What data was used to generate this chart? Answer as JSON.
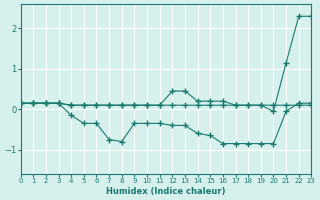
{
  "xlabel": "Humidex (Indice chaleur)",
  "ylabel": "",
  "bg_color": "#d6f0ee",
  "line_color": "#1a7a6e",
  "grid_color": "#ffffff",
  "xlim": [
    0,
    23
  ],
  "ylim": [
    -1.6,
    2.6
  ],
  "xticks": [
    0,
    1,
    2,
    3,
    4,
    5,
    6,
    7,
    8,
    9,
    10,
    11,
    12,
    13,
    14,
    15,
    16,
    17,
    18,
    19,
    20,
    21,
    22,
    23
  ],
  "yticks": [
    -1,
    0,
    1,
    2
  ],
  "line1_x": [
    0,
    1,
    2,
    3,
    4,
    5,
    6,
    7,
    8,
    9,
    10,
    11,
    12,
    13,
    14,
    15,
    16,
    17,
    18,
    19,
    20,
    21,
    22,
    23
  ],
  "line1_y": [
    0.15,
    0.15,
    0.15,
    0.15,
    0.1,
    0.1,
    0.1,
    0.1,
    0.1,
    0.1,
    0.1,
    0.1,
    0.45,
    0.45,
    0.2,
    0.2,
    0.2,
    0.1,
    0.1,
    0.1,
    -0.05,
    1.15,
    2.3,
    2.3
  ],
  "line2_x": [
    0,
    1,
    2,
    3,
    4,
    5,
    6,
    7,
    8,
    9,
    10,
    11,
    12,
    13,
    14,
    15,
    16,
    17,
    18,
    19,
    20,
    21,
    22,
    23
  ],
  "line2_y": [
    0.15,
    0.15,
    0.15,
    0.15,
    -0.15,
    -0.35,
    -0.35,
    -0.75,
    -0.8,
    -0.35,
    -0.35,
    -0.35,
    -0.4,
    -0.4,
    -0.6,
    -0.65,
    -0.85,
    -0.85,
    -0.85,
    -0.85,
    -0.85,
    -0.05,
    0.15,
    0.15
  ],
  "line3_x": [
    0,
    1,
    2,
    3,
    4,
    5,
    6,
    7,
    8,
    9,
    10,
    11,
    12,
    13,
    14,
    15,
    16,
    17,
    18,
    19,
    20,
    21,
    22,
    23
  ],
  "line3_y": [
    0.15,
    0.15,
    0.15,
    0.15,
    0.1,
    0.1,
    0.1,
    0.1,
    0.1,
    0.1,
    0.1,
    0.1,
    0.1,
    0.1,
    0.1,
    0.1,
    0.1,
    0.1,
    0.1,
    0.1,
    0.1,
    0.1,
    0.1,
    0.1
  ]
}
